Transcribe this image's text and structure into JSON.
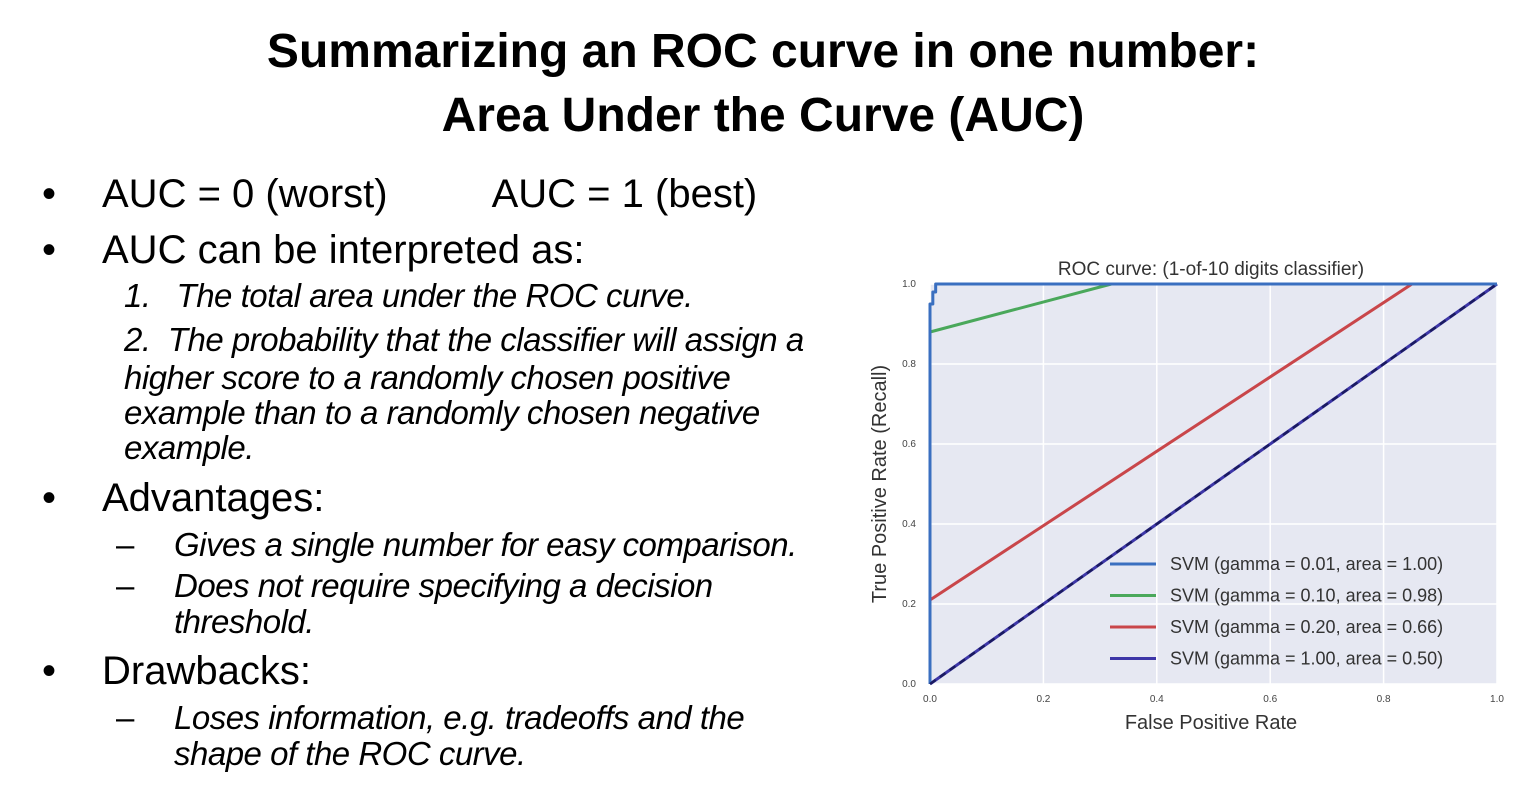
{
  "slide": {
    "title_line1": "Summarizing an ROC curve in one number:",
    "title_line2": "Area Under the Curve (AUC)",
    "bullet_marker": "•",
    "dash_marker": "–",
    "bullets": [
      {
        "part1": "AUC = 0  (worst)",
        "part2": "AUC = 1  (best)"
      },
      {
        "text": "AUC can be interpreted as:"
      },
      {
        "text": "Advantages:"
      },
      {
        "text": "Drawbacks:"
      }
    ],
    "interpretations": [
      {
        "number": "1.",
        "lines": [
          "The total area under the ROC curve."
        ]
      },
      {
        "number": "2.",
        "lines": [
          "The probability that the classifier will assign a",
          "higher score to a randomly chosen positive",
          "example than to a randomly chosen negative",
          "example."
        ]
      }
    ],
    "advantages": [
      {
        "lines": [
          "Gives a single number for easy comparison."
        ]
      },
      {
        "lines": [
          "Does not require specifying a decision",
          "threshold."
        ]
      }
    ],
    "drawbacks": [
      {
        "lines": [
          "Loses information, e.g. tradeoffs and the",
          "shape of the ROC curve."
        ]
      }
    ]
  },
  "chart_data": {
    "type": "line",
    "title": "ROC curve: (1-of-10 digits classifier)",
    "xlabel": "False Positive Rate",
    "ylabel": "True Positive Rate (Recall)",
    "xlim": [
      0.0,
      1.0
    ],
    "ylim": [
      0.0,
      1.0
    ],
    "x_ticks": [
      0.0,
      0.2,
      0.4,
      0.6,
      0.8,
      1.0
    ],
    "y_ticks": [
      0.0,
      0.2,
      0.4,
      0.6,
      0.8,
      1.0
    ],
    "x_tick_labels": [
      "0.0",
      "0.2",
      "0.4",
      "0.6",
      "0.8",
      "1.0"
    ],
    "y_tick_labels": [
      "0.0",
      "0.2",
      "0.4",
      "0.6",
      "0.8",
      "1.0"
    ],
    "grid": true,
    "background": "#e6e8f2",
    "legend_position": "lower-right",
    "series": [
      {
        "name": "SVM (gamma = 0.01, area = 1.00)",
        "color": "#3a6fc0",
        "dashed": false,
        "x": [
          0.0,
          0.0,
          0.005,
          0.005,
          0.01,
          0.01,
          1.0
        ],
        "y": [
          0.0,
          0.95,
          0.95,
          0.98,
          0.98,
          1.0,
          1.0
        ]
      },
      {
        "name": "SVM (gamma = 0.10, area = 0.98)",
        "color": "#4aa85b",
        "dashed": false,
        "x": [
          0.0,
          0.0,
          0.32,
          1.0
        ],
        "y": [
          0.0,
          0.88,
          1.0,
          1.0
        ]
      },
      {
        "name": "SVM (gamma = 0.20, area = 0.66)",
        "color": "#c9464a",
        "dashed": false,
        "x": [
          0.0,
          0.0,
          0.85,
          1.0
        ],
        "y": [
          0.0,
          0.21,
          1.0,
          1.0
        ]
      },
      {
        "name": "SVM (gamma = 1.00, area = 0.50)",
        "color": "#3d36a8",
        "dashed": false,
        "x": [
          0.0,
          1.0
        ],
        "y": [
          0.0,
          1.0
        ]
      }
    ],
    "reference_line": {
      "x": [
        0.0,
        1.0
      ],
      "y": [
        0.0,
        1.0
      ],
      "color": "#1a1a60",
      "dashed": true
    }
  }
}
